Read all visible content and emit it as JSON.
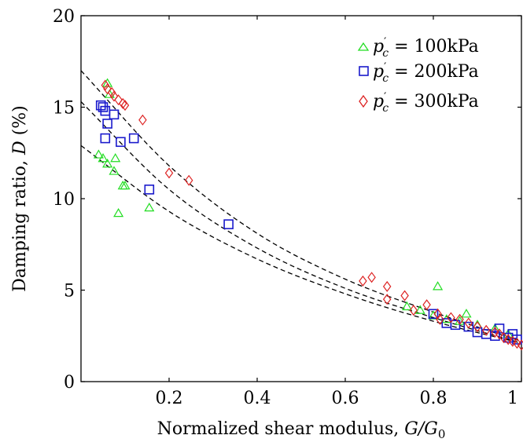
{
  "chart_data": {
    "type": "scatter",
    "xlabel": "Normalized shear modulus, G/G0",
    "ylabel": "Damping ratio, D (%)",
    "xlim": [
      0,
      1
    ],
    "ylim": [
      0,
      20
    ],
    "x_ticks": [
      0.2,
      0.4,
      0.6,
      0.8,
      1
    ],
    "x_tick_labels": [
      "0.2",
      "0.4",
      "0.6",
      "0.8",
      "1"
    ],
    "y_ticks": [
      0,
      5,
      10,
      15,
      20
    ],
    "y_tick_labels": [
      "0",
      "5",
      "10",
      "15",
      "20"
    ],
    "grid": false,
    "legend_position": "top-right",
    "series": [
      {
        "name": "p'c = 100kPa",
        "marker": "triangle",
        "color": "#22dd22",
        "points": [
          [
            0.04,
            12.4
          ],
          [
            0.05,
            12.2
          ],
          [
            0.06,
            11.9
          ],
          [
            0.075,
            11.5
          ],
          [
            0.078,
            12.2
          ],
          [
            0.085,
            9.2
          ],
          [
            0.095,
            10.7
          ],
          [
            0.1,
            10.7
          ],
          [
            0.155,
            9.5
          ],
          [
            0.06,
            16.3
          ],
          [
            0.065,
            15.7
          ],
          [
            0.74,
            4.1
          ],
          [
            0.77,
            3.9
          ],
          [
            0.8,
            3.6
          ],
          [
            0.81,
            5.2
          ],
          [
            0.83,
            3.4
          ],
          [
            0.86,
            3.3
          ],
          [
            0.875,
            3.7
          ],
          [
            0.9,
            3.1
          ],
          [
            0.94,
            2.9
          ],
          [
            0.97,
            2.6
          ]
        ]
      },
      {
        "name": "p'c = 200kPa",
        "marker": "square",
        "color": "#1a1acc",
        "points": [
          [
            0.045,
            15.1
          ],
          [
            0.05,
            15.0
          ],
          [
            0.055,
            14.8
          ],
          [
            0.055,
            13.3
          ],
          [
            0.06,
            14.1
          ],
          [
            0.075,
            14.6
          ],
          [
            0.09,
            13.1
          ],
          [
            0.12,
            13.3
          ],
          [
            0.155,
            10.5
          ],
          [
            0.335,
            8.6
          ],
          [
            0.8,
            3.7
          ],
          [
            0.83,
            3.2
          ],
          [
            0.85,
            3.1
          ],
          [
            0.88,
            3.0
          ],
          [
            0.9,
            2.7
          ],
          [
            0.92,
            2.6
          ],
          [
            0.94,
            2.5
          ],
          [
            0.95,
            2.9
          ],
          [
            0.97,
            2.4
          ],
          [
            0.98,
            2.6
          ],
          [
            0.99,
            2.3
          ]
        ]
      },
      {
        "name": "p'c = 300kPa",
        "marker": "diamond",
        "color": "#dd2222",
        "points": [
          [
            0.055,
            16.2
          ],
          [
            0.06,
            16.0
          ],
          [
            0.07,
            15.8
          ],
          [
            0.075,
            15.6
          ],
          [
            0.085,
            15.4
          ],
          [
            0.095,
            15.2
          ],
          [
            0.1,
            15.1
          ],
          [
            0.14,
            14.3
          ],
          [
            0.2,
            11.4
          ],
          [
            0.245,
            11.0
          ],
          [
            0.64,
            5.5
          ],
          [
            0.66,
            5.7
          ],
          [
            0.695,
            5.2
          ],
          [
            0.695,
            4.5
          ],
          [
            0.735,
            4.7
          ],
          [
            0.755,
            3.9
          ],
          [
            0.785,
            4.2
          ],
          [
            0.81,
            3.7
          ],
          [
            0.815,
            3.4
          ],
          [
            0.84,
            3.5
          ],
          [
            0.86,
            3.4
          ],
          [
            0.88,
            3.2
          ],
          [
            0.9,
            3.0
          ],
          [
            0.92,
            2.8
          ],
          [
            0.94,
            2.7
          ],
          [
            0.95,
            2.6
          ],
          [
            0.96,
            2.4
          ],
          [
            0.97,
            2.3
          ],
          [
            0.98,
            2.2
          ],
          [
            0.99,
            2.1
          ],
          [
            1.0,
            2.0
          ]
        ]
      }
    ],
    "fit_curves": [
      {
        "style": "dashed",
        "color": "#000000",
        "points": [
          [
            0,
            12.9
          ],
          [
            0.2,
            9.3
          ],
          [
            0.4,
            6.7
          ],
          [
            0.6,
            4.8
          ],
          [
            0.8,
            3.3
          ],
          [
            1.0,
            2.1
          ]
        ]
      },
      {
        "style": "dashed",
        "color": "#000000",
        "points": [
          [
            0,
            15.3
          ],
          [
            0.2,
            10.5
          ],
          [
            0.4,
            7.3
          ],
          [
            0.6,
            5.1
          ],
          [
            0.8,
            3.5
          ],
          [
            1.0,
            2.1
          ]
        ]
      },
      {
        "style": "dashed",
        "color": "#000000",
        "points": [
          [
            0,
            17.0
          ],
          [
            0.2,
            11.8
          ],
          [
            0.4,
            8.1
          ],
          [
            0.6,
            5.6
          ],
          [
            0.8,
            3.8
          ],
          [
            1.0,
            2.2
          ]
        ]
      }
    ]
  },
  "legend": {
    "entries": [
      {
        "prefix": "p",
        "sup": "′",
        "sub": "c",
        "text": " = 100kPa"
      },
      {
        "prefix": "p",
        "sup": "′",
        "sub": "c",
        "text": " = 200kPa"
      },
      {
        "prefix": "p",
        "sup": "′",
        "sub": "c",
        "text": " = 300kPa"
      }
    ]
  },
  "axis_titles": {
    "x_prefix": "Normalized shear modulus, ",
    "x_math": "G/G",
    "x_math_sub": "0",
    "y_prefix": "Damping ratio, ",
    "y_math": "D",
    "y_suffix": " (%)"
  }
}
